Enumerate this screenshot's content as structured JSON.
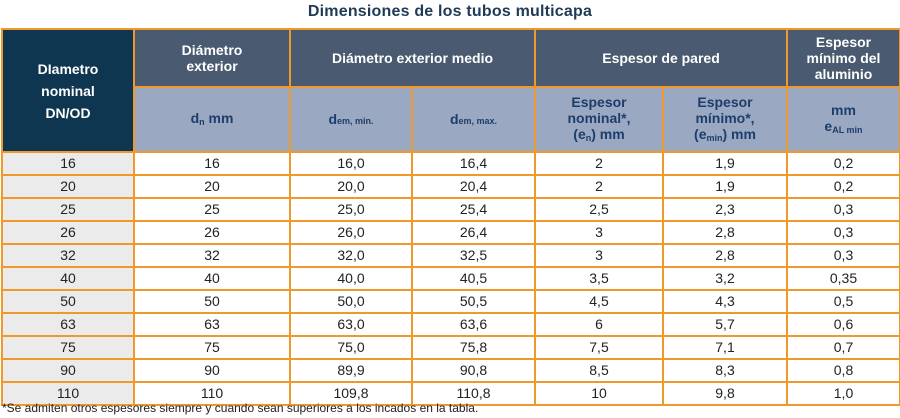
{
  "title": "Dimensiones de los tubos multicapa",
  "headers": {
    "dn_od": [
      "DIametro",
      "nominal",
      "DN/OD"
    ],
    "diametro_exterior": [
      "Diámetro",
      "exterior"
    ],
    "diametro_exterior_medio": "Diámetro exterior medio",
    "espesor_pared": "Espesor de pared",
    "espesor_aluminio": [
      "Espesor",
      "mínimo del",
      "aluminio"
    ],
    "sub": {
      "dn_main": "d",
      "dn_sub": "n",
      "dn_unit": " mm",
      "dem_min_main": "d",
      "dem_min_sub": "em, min.",
      "dem_max_main": "d",
      "dem_max_sub": "em, max.",
      "esp_nom_l1": "Espesor",
      "esp_nom_l2": "nominal*,",
      "esp_nom_pre": "(e",
      "esp_nom_sub": "n",
      "esp_nom_post": ") mm",
      "esp_min_l1": "Espesor",
      "esp_min_l2": "mínimo*,",
      "esp_min_pre": "(e",
      "esp_min_sub": "min",
      "esp_min_post": ") mm",
      "al_unit": "mm",
      "al_main": "e",
      "al_sub": "AL min"
    }
  },
  "rows": [
    [
      "16",
      "16",
      "16,0",
      "16,4",
      "2",
      "1,9",
      "0,2"
    ],
    [
      "20",
      "20",
      "20,0",
      "20,4",
      "2",
      "1,9",
      "0,2"
    ],
    [
      "25",
      "25",
      "25,0",
      "25,4",
      "2,5",
      "2,3",
      "0,3"
    ],
    [
      "26",
      "26",
      "26,0",
      "26,4",
      "3",
      "2,8",
      "0,3"
    ],
    [
      "32",
      "32",
      "32,0",
      "32,5",
      "3",
      "2,8",
      "0,3"
    ],
    [
      "40",
      "40",
      "40,0",
      "40,5",
      "3,5",
      "3,2",
      "0,35"
    ],
    [
      "50",
      "50",
      "50,0",
      "50,5",
      "4,5",
      "4,3",
      "0,5"
    ],
    [
      "63",
      "63",
      "63,0",
      "63,6",
      "6",
      "5,7",
      "0,6"
    ],
    [
      "75",
      "75",
      "75,0",
      "75,8",
      "7,5",
      "7,1",
      "0,7"
    ],
    [
      "90",
      "90",
      "89,9",
      "90,8",
      "8,5",
      "8,3",
      "0,8"
    ],
    [
      "110",
      "110",
      "109,8",
      "110,8",
      "10",
      "9,8",
      "1,0"
    ]
  ],
  "footnote": "*Se admiten otros espesores siempre y cuando sean superiores a los incados en la tabla.",
  "colors": {
    "border": "#f0982a",
    "header_dark": "#0f3650",
    "header_top": "#4a5a70",
    "header_sub": "#9ba8c2",
    "first_col_bg": "#ebebeb"
  }
}
